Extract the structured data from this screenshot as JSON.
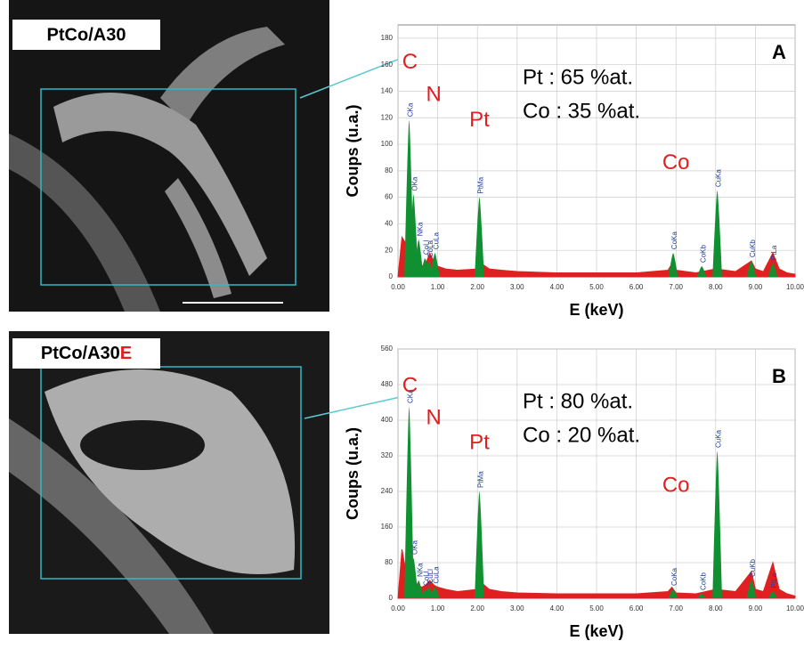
{
  "images": [
    {
      "label": "PtCo/A30"
    },
    {
      "label": "PtCo/A30",
      "suffix": "E"
    }
  ],
  "chart_data": [
    {
      "type": "spectrum",
      "title": "A",
      "xlabel": "E (keV)",
      "ylabel": "Coups (u.a.)",
      "composition": [
        "Pt : 65 %at.",
        "Co : 35 %at."
      ],
      "elements": [
        "C",
        "N",
        "Pt",
        "Co"
      ],
      "xlim": [
        0,
        10
      ],
      "xticks": [
        {
          "value": 0,
          "label": "0.00"
        },
        {
          "value": 1,
          "label": "1.00"
        },
        {
          "value": 2,
          "label": "2.00"
        },
        {
          "value": 3,
          "label": "3.00"
        },
        {
          "value": 4,
          "label": "4.00"
        },
        {
          "value": 5,
          "label": "5.00"
        },
        {
          "value": 6,
          "label": "6.00"
        },
        {
          "value": 7,
          "label": "7.00"
        },
        {
          "value": 8,
          "label": "8.00"
        },
        {
          "value": 9,
          "label": "9.00"
        },
        {
          "value": 10,
          "label": "10.00"
        }
      ],
      "ylim": [
        0,
        190
      ],
      "yticks": [
        0,
        20,
        40,
        60,
        80,
        100,
        120,
        140,
        160,
        180
      ],
      "grid": true,
      "color": "#e02020",
      "peak_color": "#109030",
      "x": [
        0,
        0.1,
        0.2,
        0.3,
        0.4,
        0.5,
        0.6,
        0.7,
        0.8,
        0.9,
        1.0,
        1.2,
        1.5,
        2.0,
        2.1,
        2.3,
        2.6,
        3.0,
        4.0,
        5.0,
        6.0,
        6.8,
        6.9,
        7.0,
        7.5,
        8.0,
        8.5,
        8.9,
        9.0,
        9.2,
        9.44,
        9.6,
        9.8,
        10.0
      ],
      "values": [
        0,
        30,
        25,
        15,
        12,
        10,
        8,
        10,
        18,
        12,
        8,
        6,
        5,
        6,
        10,
        6,
        5,
        4,
        3,
        3,
        3,
        5,
        10,
        5,
        3,
        6,
        4,
        12,
        6,
        4,
        18,
        6,
        3,
        2
      ],
      "peaks": {
        "x": [
          0.28,
          0.39,
          0.52,
          0.68,
          0.78,
          0.93,
          2.05,
          6.93,
          7.65,
          8.04,
          8.9,
          9.44
        ],
        "values": [
          118,
          62,
          28,
          14,
          12,
          18,
          60,
          18,
          8,
          65,
          12,
          10
        ],
        "labels": [
          "CKa",
          "OKa",
          "NKa",
          "CoLl",
          "CoLa",
          "CuLa",
          "PtMa",
          "CoKa",
          "CoKb",
          "CuKa",
          "CuKb",
          "PtLa"
        ]
      }
    },
    {
      "type": "spectrum",
      "title": "B",
      "xlabel": "E (keV)",
      "ylabel": "Coups (u.a.)",
      "composition": [
        "Pt : 80 %at.",
        "Co : 20 %at."
      ],
      "elements": [
        "C",
        "N",
        "Pt",
        "Co"
      ],
      "xlim": [
        0,
        10
      ],
      "xticks": [
        {
          "value": 0,
          "label": "0.00"
        },
        {
          "value": 1,
          "label": "1.00"
        },
        {
          "value": 2,
          "label": "2.00"
        },
        {
          "value": 3,
          "label": "3.00"
        },
        {
          "value": 4,
          "label": "4.00"
        },
        {
          "value": 5,
          "label": "5.00"
        },
        {
          "value": 6,
          "label": "6.00"
        },
        {
          "value": 7,
          "label": "7.00"
        },
        {
          "value": 8,
          "label": "8.00"
        },
        {
          "value": 9,
          "label": "9.00"
        },
        {
          "value": 10,
          "label": "10.00"
        }
      ],
      "ylim": [
        0,
        560
      ],
      "yticks": [
        0,
        80,
        160,
        240,
        320,
        400,
        480,
        560
      ],
      "grid": true,
      "color": "#e02020",
      "peak_color": "#109030",
      "x": [
        0,
        0.1,
        0.2,
        0.3,
        0.4,
        0.5,
        0.6,
        0.7,
        0.8,
        0.9,
        1.0,
        1.2,
        1.5,
        2.0,
        2.1,
        2.3,
        2.6,
        3.0,
        4.0,
        5.0,
        6.0,
        6.8,
        6.9,
        7.0,
        7.5,
        8.0,
        8.5,
        8.9,
        9.0,
        9.2,
        9.44,
        9.6,
        9.8,
        10.0
      ],
      "values": [
        0,
        110,
        60,
        50,
        40,
        30,
        25,
        30,
        40,
        30,
        25,
        20,
        15,
        20,
        35,
        20,
        15,
        12,
        10,
        10,
        10,
        15,
        25,
        12,
        10,
        20,
        15,
        60,
        20,
        15,
        80,
        20,
        10,
        5
      ],
      "peaks": {
        "x": [
          0.28,
          0.39,
          0.52,
          0.68,
          0.78,
          0.93,
          2.05,
          6.93,
          7.65,
          8.04,
          8.9,
          9.44
        ],
        "values": [
          430,
          90,
          40,
          20,
          25,
          25,
          240,
          20,
          10,
          330,
          40,
          15
        ],
        "labels": [
          "CKa",
          "OKa",
          "NKa",
          "CoLl",
          "CuLl",
          "CuLa",
          "PtMa",
          "CoKa",
          "CoKb",
          "CuKa",
          "CuKb",
          "PtLa"
        ]
      }
    }
  ]
}
